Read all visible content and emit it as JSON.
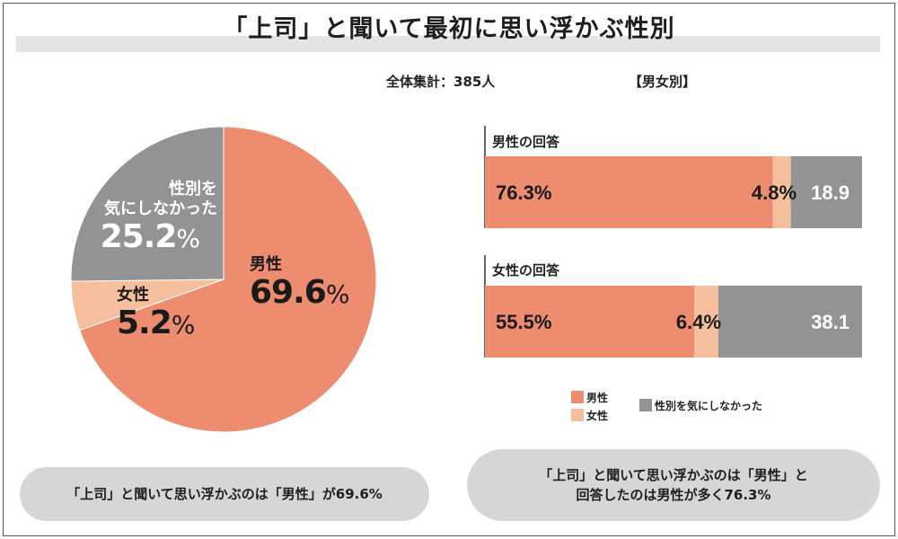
{
  "title": "「上司」と聞いて最初に思い浮かぶ性別",
  "total_label": "全体集計：385人",
  "by_gender_label": "【男女別】",
  "colors": {
    "male": "#ee8c6f",
    "female": "#f5bf9e",
    "none": "#939393"
  },
  "pie": {
    "male_label": "男性",
    "male_value": "69.6",
    "female_label": "女性",
    "female_value": "5.2",
    "none_label_line1": "性別を",
    "none_label_line2": "気にしなかった",
    "none_value": "25.2",
    "pct_sign": "%"
  },
  "bars": {
    "male_group_label": "男性の回答",
    "female_group_label": "女性の回答",
    "male_row": {
      "male": "76.3%",
      "female": "4.8%",
      "none": "18.9"
    },
    "female_row": {
      "male": "55.5%",
      "female": "6.4%",
      "none": "38.1"
    }
  },
  "legend": {
    "male": "男性",
    "female": "女性",
    "none": "性別を気にしなかった"
  },
  "summary_left": "「上司」と聞いて思い浮かぶのは「男性」が69.6%",
  "summary_right_line1": "「上司」と聞いて思い浮かぶのは「男性」と",
  "summary_right_line2": "回答したのは男性が多く76.3%",
  "chart_data": [
    {
      "type": "pie",
      "title": "全体集計：385人",
      "categories": [
        "男性",
        "女性",
        "性別を気にしなかった"
      ],
      "values": [
        69.6,
        5.2,
        25.2
      ]
    },
    {
      "type": "bar",
      "stacked": true,
      "orientation": "horizontal",
      "title": "【男女別】",
      "categories": [
        "男性の回答",
        "女性の回答"
      ],
      "series": [
        {
          "name": "男性",
          "values": [
            76.3,
            55.5
          ]
        },
        {
          "name": "女性",
          "values": [
            4.8,
            6.4
          ]
        },
        {
          "name": "性別を気にしなかった",
          "values": [
            18.9,
            38.1
          ]
        }
      ]
    }
  ]
}
